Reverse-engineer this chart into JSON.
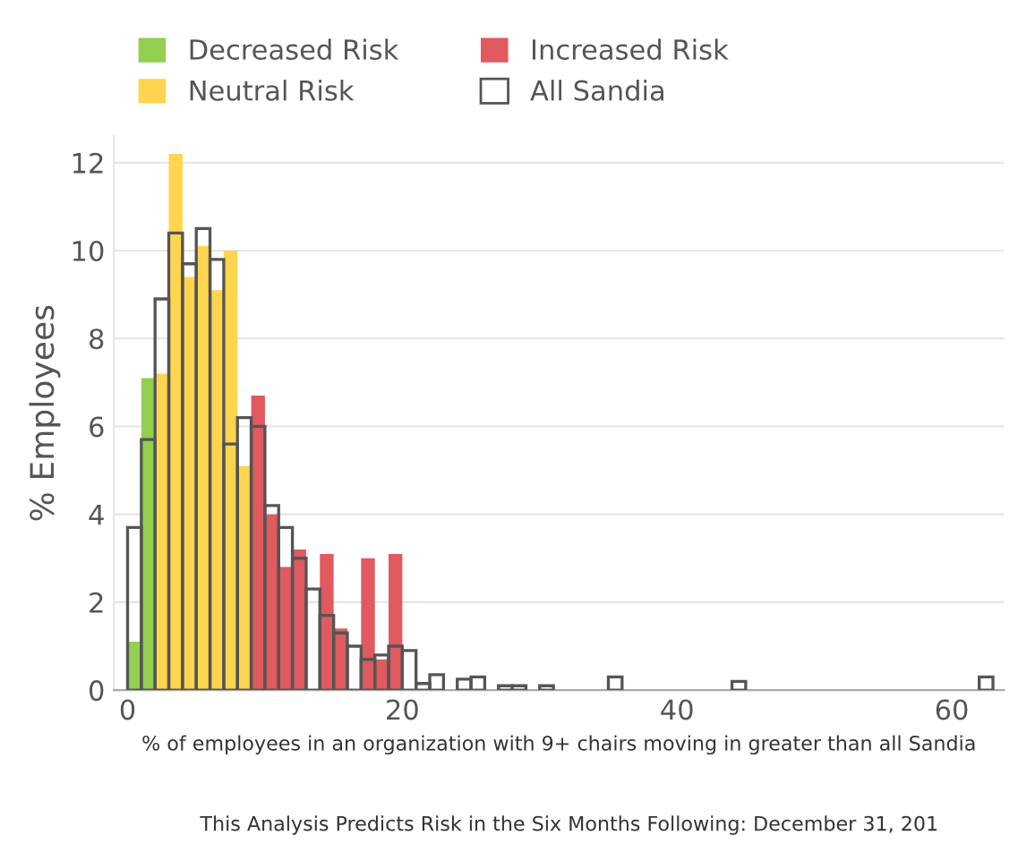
{
  "chart_data": {
    "type": "histogram",
    "ylabel": "% Employees",
    "xlabel": "% of employees in an organization with 9+ chairs moving in greater than all Sandia",
    "annotations": [
      "This Analysis Predicts Risk in the Six Months Following: December 31, 201"
    ],
    "bins": [
      0,
      1,
      2,
      3,
      4,
      5,
      6,
      7,
      8,
      9,
      10,
      11,
      12,
      13,
      14,
      15,
      16,
      17,
      18,
      19,
      20,
      21,
      22,
      23,
      24,
      25,
      26,
      27,
      28,
      29,
      30,
      31,
      32,
      33,
      34,
      35,
      36,
      37,
      38,
      39,
      40,
      41,
      42,
      43,
      44,
      45,
      46,
      47,
      48,
      49,
      50,
      51,
      52,
      53,
      54,
      55,
      56,
      57,
      58,
      59,
      60,
      61,
      62,
      63
    ],
    "series": [
      {
        "name": "Decreased Risk",
        "color": "#92d050",
        "values": [
          1.1,
          7.1,
          null,
          null,
          null,
          null,
          null,
          null,
          null,
          null,
          null,
          null,
          null,
          null,
          null,
          null,
          null,
          null,
          null,
          null,
          null,
          null,
          null,
          null,
          null,
          null,
          null,
          null,
          null,
          null,
          null,
          null,
          null,
          null,
          null,
          null,
          null,
          null,
          null,
          null,
          null,
          null,
          null,
          null,
          null,
          null,
          null,
          null,
          null,
          null,
          null,
          null,
          null,
          null,
          null,
          null,
          null,
          null,
          null,
          null,
          null,
          null,
          null
        ]
      },
      {
        "name": "Neutral Risk",
        "color": "#ffd54f",
        "values": [
          null,
          null,
          7.2,
          12.2,
          9.4,
          10.1,
          9.1,
          10.0,
          5.1,
          null,
          null,
          null,
          null,
          null,
          null,
          null,
          null,
          null,
          null,
          null,
          null,
          null,
          null,
          null,
          null,
          null,
          null,
          null,
          null,
          null,
          null,
          null,
          null,
          null,
          null,
          null,
          null,
          null,
          null,
          null,
          null,
          null,
          null,
          null,
          null,
          null,
          null,
          null,
          null,
          null,
          null,
          null,
          null,
          null,
          null,
          null,
          null,
          null,
          null,
          null,
          null,
          null,
          null
        ]
      },
      {
        "name": "Increased Risk",
        "color": "#e05a5f",
        "values": [
          null,
          null,
          null,
          null,
          null,
          null,
          null,
          null,
          null,
          6.7,
          4.0,
          2.8,
          3.2,
          null,
          3.1,
          1.4,
          null,
          3.0,
          0.7,
          3.1,
          null,
          null,
          null,
          null,
          null,
          null,
          null,
          null,
          null,
          null,
          null,
          null,
          null,
          null,
          null,
          null,
          null,
          null,
          null,
          null,
          null,
          null,
          null,
          null,
          null,
          null,
          null,
          null,
          null,
          null,
          null,
          null,
          null,
          null,
          null,
          null,
          null,
          null,
          null,
          null,
          null,
          null,
          null
        ]
      },
      {
        "name": "All Sandia",
        "color": "#555555",
        "values": [
          3.7,
          5.7,
          8.9,
          10.4,
          9.7,
          10.5,
          9.8,
          5.6,
          6.2,
          6.0,
          4.2,
          3.7,
          3.0,
          2.3,
          1.7,
          1.3,
          1.0,
          0.7,
          0.8,
          1.0,
          0.9,
          0.15,
          0.35,
          null,
          0.25,
          0.3,
          null,
          0.1,
          0.1,
          null,
          0.1,
          null,
          null,
          null,
          null,
          0.3,
          null,
          null,
          null,
          null,
          null,
          null,
          null,
          null,
          0.2,
          null,
          null,
          null,
          null,
          null,
          null,
          null,
          null,
          null,
          null,
          null,
          null,
          null,
          null,
          null,
          null,
          null,
          0.3
        ]
      }
    ],
    "xlim": [
      -1,
      63.8
    ],
    "ylim": [
      0,
      12.6
    ],
    "xticks": [
      0,
      20,
      40,
      60
    ],
    "yticks": [
      0,
      2,
      4,
      6,
      8,
      10,
      12
    ],
    "grid": "y",
    "legend": "top"
  }
}
